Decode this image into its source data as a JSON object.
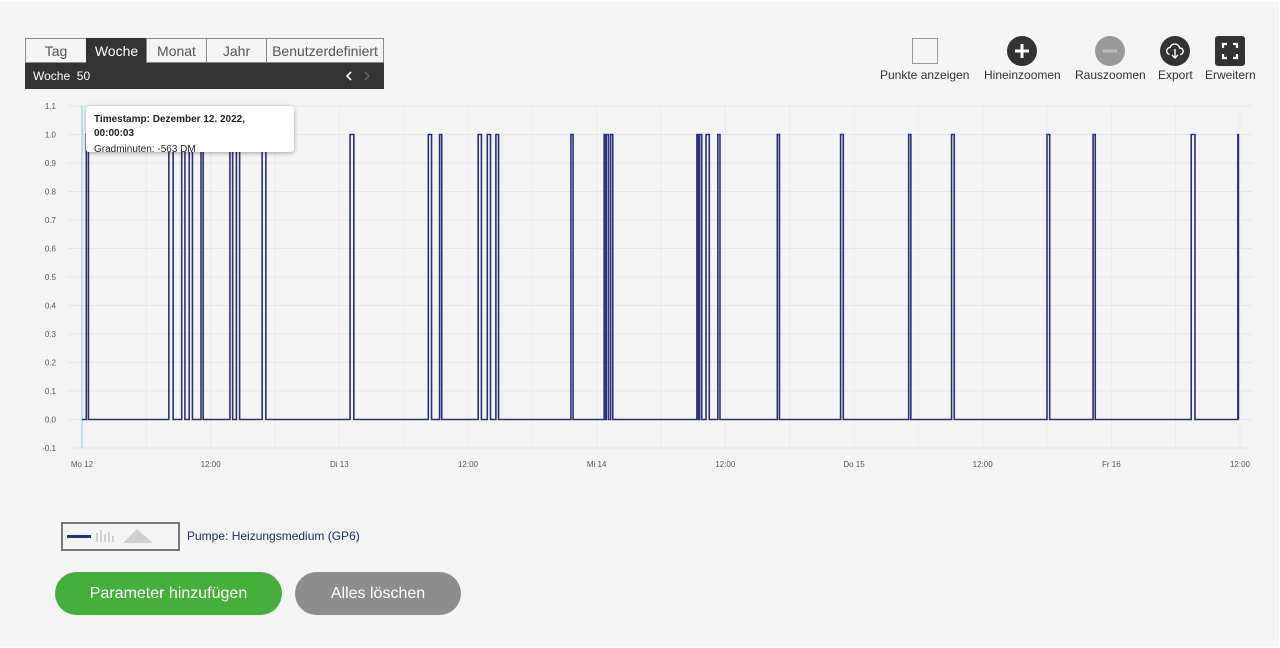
{
  "tabs": [
    {
      "label": "Tag",
      "active": false
    },
    {
      "label": "Woche",
      "active": true
    },
    {
      "label": "Monat",
      "active": false
    },
    {
      "label": "Jahr",
      "active": false
    },
    {
      "label": "Benutzerdefiniert",
      "active": false
    }
  ],
  "period": {
    "label": "Woche  50"
  },
  "toolbar": {
    "points_label": "Punkte anzeigen",
    "zoom_in_label": "Hineinzoomen",
    "zoom_out_label": "Rauszoomen",
    "export_label": "Export",
    "expand_label": "Erweitern"
  },
  "tooltip": {
    "timestamp": "Timestamp: Dezember 12. 2022, 00:00:03",
    "value": "Gradminuten: -563 DM"
  },
  "legend": {
    "series_label": "Pumpe: Heizungsmedium (GP6)"
  },
  "buttons": {
    "add_parameter": "Parameter hinzufügen",
    "clear_all": "Alles löschen"
  },
  "colors": {
    "series": "#2b3178",
    "active_tab": "#333333",
    "add_button": "#44b03a",
    "clear_button": "#8d8d8d",
    "cursor_line": "#7fd0e0"
  },
  "chart_data": {
    "type": "line",
    "step": true,
    "ylim": [
      -0.1,
      1.1
    ],
    "y_ticks": [
      "1.1",
      "1.0",
      "0.9",
      "0.8",
      "0.7",
      "0.6",
      "0.5",
      "0.4",
      "0.3",
      "0.2",
      "0.1",
      "0.0",
      "-0.1"
    ],
    "x_ticks": [
      "Mo 12",
      "12:00",
      "Di 13",
      "12:00",
      "Mi 14",
      "12:00",
      "Do 15",
      "12:00",
      "Fr 16",
      "12:00"
    ],
    "x_unit": "hours since Mo 12 00:00",
    "xlim": [
      0,
      108
    ],
    "series": [
      {
        "name": "Pumpe: Heizungsmedium (GP6)",
        "on_intervals": [
          [
            0.4,
            0.6
          ],
          [
            8.1,
            8.5
          ],
          [
            9.3,
            9.6
          ],
          [
            10.0,
            10.3
          ],
          [
            11.1,
            11.3
          ],
          [
            13.8,
            14.05
          ],
          [
            14.4,
            14.7
          ],
          [
            16.8,
            17.15
          ],
          [
            25.0,
            25.35
          ],
          [
            32.3,
            32.6
          ],
          [
            33.35,
            33.55
          ],
          [
            36.95,
            37.25
          ],
          [
            37.8,
            38.1
          ],
          [
            38.6,
            38.85
          ],
          [
            45.6,
            45.8
          ],
          [
            48.7,
            48.85
          ],
          [
            48.9,
            49.1
          ],
          [
            49.3,
            49.5
          ],
          [
            57.35,
            57.5
          ],
          [
            57.6,
            57.8
          ],
          [
            58.2,
            58.5
          ],
          [
            59.3,
            59.5
          ],
          [
            64.85,
            65.05
          ],
          [
            70.75,
            71.0
          ],
          [
            77.1,
            77.3
          ],
          [
            81.1,
            81.35
          ],
          [
            90.0,
            90.25
          ],
          [
            94.3,
            94.5
          ],
          [
            103.45,
            103.8
          ],
          [
            107.8,
            107.85
          ]
        ]
      }
    ]
  }
}
